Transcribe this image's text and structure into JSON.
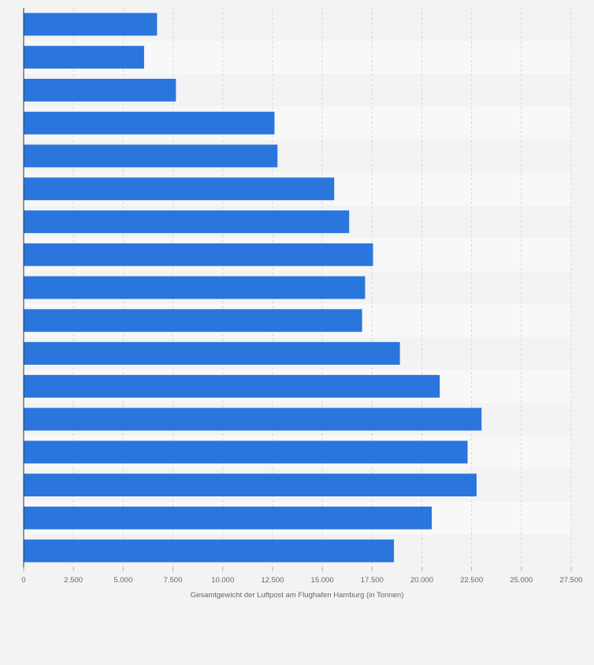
{
  "colors": {
    "bar": "#2a76dd",
    "background": "#f3f3f4",
    "band": "#f8f8f8",
    "grid": "#d6d6d6",
    "axis": "#333333",
    "tick_text": "#666666"
  },
  "chart_data": {
    "type": "bar",
    "orientation": "horizontal",
    "title": "",
    "xlabel": "Gesamtgewicht der Luftpost am Flughafen Hamburg (in Tonnen)",
    "ylabel": "",
    "xlim": [
      0,
      27500
    ],
    "x_ticks": [
      0,
      2500,
      5000,
      7500,
      10000,
      12500,
      15000,
      17500,
      20000,
      22500,
      25000,
      27500
    ],
    "x_tick_labels": [
      "0",
      "2.500",
      "5.000",
      "7.500",
      "10.000",
      "12.500",
      "15.000",
      "17.500",
      "20.000",
      "22.500",
      "25.000",
      "27.500"
    ],
    "grid": true,
    "category_labels_visible": false,
    "values": [
      6700,
      6050,
      7650,
      12600,
      12750,
      15600,
      16350,
      17550,
      17150,
      17000,
      18900,
      20900,
      23000,
      22300,
      22750,
      20500,
      18600
    ]
  }
}
